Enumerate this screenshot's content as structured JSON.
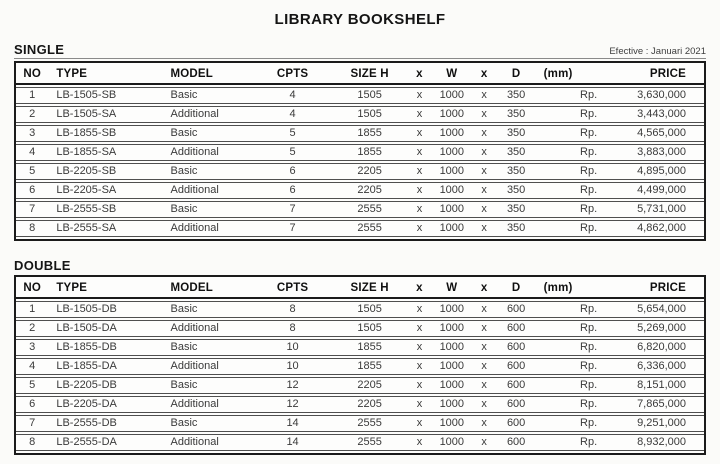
{
  "title": "LIBRARY BOOKSHELF",
  "effective_note": "Efective : Januari 2021",
  "size_separator": "x",
  "currency_prefix": "Rp.",
  "colors": {
    "thick_border": "#1b1b1b",
    "thin_border": "#4f4f4f",
    "page_background": "#fbfbf9",
    "text": "#3a3a3a"
  },
  "columns": {
    "no": "NO",
    "type": "TYPE",
    "model": "MODEL",
    "cpts": "CPTS",
    "size_h": "SIZE H",
    "x1": "x",
    "w": "W",
    "x2": "x",
    "d": "D",
    "mm": "(mm)",
    "rp": "",
    "price": "PRICE"
  },
  "sections": [
    {
      "label": "SINGLE",
      "rows": [
        {
          "no": "1",
          "type": "LB-1505-SB",
          "model": "Basic",
          "cpts": "4",
          "h": "1505",
          "w": "1000",
          "d": "350",
          "price": "3,630,000"
        },
        {
          "no": "2",
          "type": "LB-1505-SA",
          "model": "Additional",
          "cpts": "4",
          "h": "1505",
          "w": "1000",
          "d": "350",
          "price": "3,443,000"
        },
        {
          "no": "3",
          "type": "LB-1855-SB",
          "model": "Basic",
          "cpts": "5",
          "h": "1855",
          "w": "1000",
          "d": "350",
          "price": "4,565,000"
        },
        {
          "no": "4",
          "type": "LB-1855-SA",
          "model": "Additional",
          "cpts": "5",
          "h": "1855",
          "w": "1000",
          "d": "350",
          "price": "3,883,000"
        },
        {
          "no": "5",
          "type": "LB-2205-SB",
          "model": "Basic",
          "cpts": "6",
          "h": "2205",
          "w": "1000",
          "d": "350",
          "price": "4,895,000"
        },
        {
          "no": "6",
          "type": "LB-2205-SA",
          "model": "Additional",
          "cpts": "6",
          "h": "2205",
          "w": "1000",
          "d": "350",
          "price": "4,499,000"
        },
        {
          "no": "7",
          "type": "LB-2555-SB",
          "model": "Basic",
          "cpts": "7",
          "h": "2555",
          "w": "1000",
          "d": "350",
          "price": "5,731,000"
        },
        {
          "no": "8",
          "type": "LB-2555-SA",
          "model": "Additional",
          "cpts": "7",
          "h": "2555",
          "w": "1000",
          "d": "350",
          "price": "4,862,000"
        }
      ]
    },
    {
      "label": "DOUBLE",
      "rows": [
        {
          "no": "1",
          "type": "LB-1505-DB",
          "model": "Basic",
          "cpts": "8",
          "h": "1505",
          "w": "1000",
          "d": "600",
          "price": "5,654,000"
        },
        {
          "no": "2",
          "type": "LB-1505-DA",
          "model": "Additional",
          "cpts": "8",
          "h": "1505",
          "w": "1000",
          "d": "600",
          "price": "5,269,000"
        },
        {
          "no": "3",
          "type": "LB-1855-DB",
          "model": "Basic",
          "cpts": "10",
          "h": "1855",
          "w": "1000",
          "d": "600",
          "price": "6,820,000"
        },
        {
          "no": "4",
          "type": "LB-1855-DA",
          "model": "Additional",
          "cpts": "10",
          "h": "1855",
          "w": "1000",
          "d": "600",
          "price": "6,336,000"
        },
        {
          "no": "5",
          "type": "LB-2205-DB",
          "model": "Basic",
          "cpts": "12",
          "h": "2205",
          "w": "1000",
          "d": "600",
          "price": "8,151,000"
        },
        {
          "no": "6",
          "type": "LB-2205-DA",
          "model": "Additional",
          "cpts": "12",
          "h": "2205",
          "w": "1000",
          "d": "600",
          "price": "7,865,000"
        },
        {
          "no": "7",
          "type": "LB-2555-DB",
          "model": "Basic",
          "cpts": "14",
          "h": "2555",
          "w": "1000",
          "d": "600",
          "price": "9,251,000"
        },
        {
          "no": "8",
          "type": "LB-2555-DA",
          "model": "Additional",
          "cpts": "14",
          "h": "2555",
          "w": "1000",
          "d": "600",
          "price": "8,932,000"
        }
      ]
    }
  ]
}
